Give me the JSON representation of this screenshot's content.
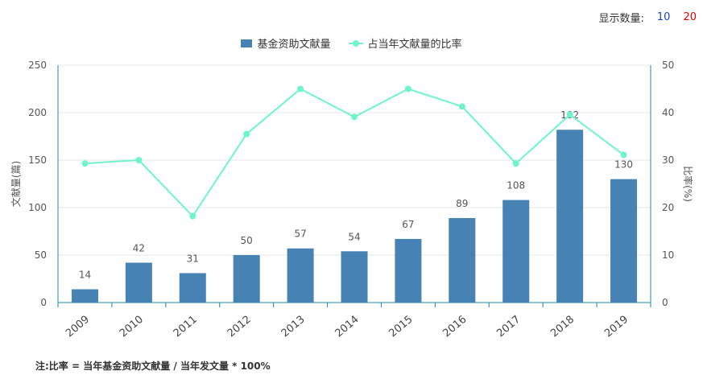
{
  "display": {
    "label": "显示数量:",
    "options": [
      "10",
      "20"
    ]
  },
  "footnote": "注:比率 = 当年基金资助文献量 / 当年发文量 * 100%",
  "colors": {
    "bar": "#4682b4",
    "line": "#6ff5c7",
    "axis": "#1a8aa8",
    "grid": "#e6e6e6"
  },
  "chart_data": {
    "type": "bar",
    "categories": [
      "2009",
      "2010",
      "2011",
      "2012",
      "2013",
      "2014",
      "2015",
      "2016",
      "2017",
      "2018",
      "2019"
    ],
    "series": [
      {
        "name": "基金资助文献量",
        "type": "bar",
        "axis": "left",
        "values": [
          14,
          42,
          31,
          50,
          57,
          54,
          67,
          89,
          108,
          182,
          130
        ]
      },
      {
        "name": "占当年文献量的比率",
        "type": "line",
        "axis": "right",
        "values": [
          29.3,
          30.0,
          18.2,
          35.5,
          45.0,
          39.1,
          45.0,
          41.3,
          29.3,
          39.6,
          31.1
        ]
      }
    ],
    "ylabel": "文献量(篇)",
    "y2label": "比率(%)",
    "ylim": [
      0,
      250
    ],
    "y2lim": [
      0,
      50
    ],
    "yticks": [
      0,
      50,
      100,
      150,
      200,
      250
    ],
    "y2ticks": [
      0,
      10,
      20,
      30,
      40,
      50
    ],
    "grid": true,
    "legend_position": "top-center"
  }
}
